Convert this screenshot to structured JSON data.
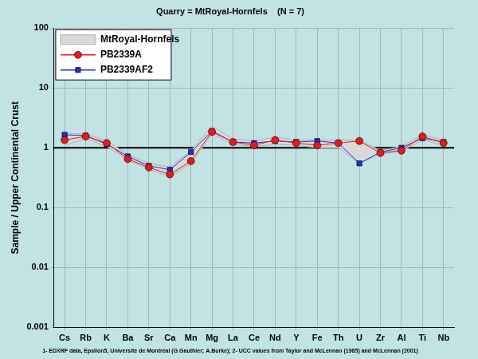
{
  "chart_data": {
    "type": "line",
    "title": "Quarry = MtRoyal-Hornfels    (N = 7)",
    "footnote": "1- EDXRF data, Epsilon5, Université de Montréal (G.Gauthier; A.Burke); 2- UCC values from Taylor and McLennan (1985) and McLennan (2001)",
    "y_label": "Sample / Upper Continental Crust",
    "categories": [
      "Cs",
      "Rb",
      "K",
      "Ba",
      "Sr",
      "Ca",
      "Mn",
      "Mg",
      "La",
      "Ce",
      "Nd",
      "Y",
      "Fe",
      "Th",
      "U",
      "Zr",
      "Al",
      "Ti",
      "Nb"
    ],
    "log": "y",
    "ylim": [
      0.001,
      100
    ],
    "yticks": [
      0.001,
      0.01,
      0.1,
      1,
      10,
      100
    ],
    "reference_line": 1,
    "grid": true,
    "legend": "upper left",
    "series": [
      {
        "name": "MtRoyal-Hornfels",
        "type": "range",
        "color": "#d9d9d9",
        "min": [
          1.1,
          1.45,
          1.05,
          0.62,
          0.44,
          0.33,
          0.55,
          1.7,
          1.15,
          1.05,
          1.15,
          1.1,
          1.0,
          1.0,
          0.55,
          0.78,
          0.88,
          1.35,
          1.1
        ],
        "max": [
          1.75,
          1.7,
          1.3,
          0.78,
          0.55,
          0.48,
          0.9,
          2.3,
          1.4,
          1.3,
          1.5,
          1.35,
          1.35,
          1.35,
          1.35,
          0.9,
          1.05,
          1.65,
          1.35
        ]
      },
      {
        "name": "PB2339A",
        "color": "#e8191e",
        "marker": "circle",
        "line_style": "solid",
        "values": [
          1.35,
          1.55,
          1.2,
          0.65,
          0.47,
          0.36,
          0.6,
          1.85,
          1.25,
          1.1,
          1.35,
          1.2,
          1.1,
          1.2,
          1.3,
          0.82,
          0.9,
          1.55,
          1.2
        ]
      },
      {
        "name": "PB2339AF2",
        "color": "#1f2fd0",
        "marker": "square",
        "line_style": "solid",
        "values": [
          1.65,
          1.6,
          1.15,
          0.72,
          0.5,
          0.43,
          0.85,
          1.9,
          1.25,
          1.2,
          1.3,
          1.25,
          1.3,
          1.2,
          0.55,
          0.85,
          1.0,
          1.45,
          1.25
        ]
      }
    ]
  }
}
